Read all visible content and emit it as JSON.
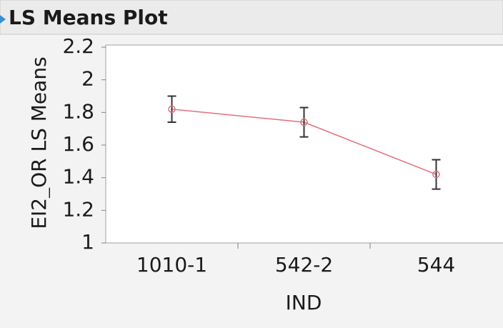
{
  "title": "LS Means Plot",
  "chart_data": {
    "type": "line",
    "y_label": "EI2_OR LS Means",
    "x_label": "IND",
    "categories": [
      "1010-1",
      "542-2",
      "544"
    ],
    "series": [
      {
        "color": "#e0707a",
        "values": [
          1.82,
          1.74,
          1.42
        ],
        "errors": [
          0.08,
          0.09,
          0.09
        ]
      }
    ],
    "error_color": "#333333",
    "ylim": [
      1,
      2.2
    ],
    "yticks": [
      {
        "value": 1,
        "label": "1"
      },
      1.2,
      1.4,
      1.6,
      1.8,
      {
        "value": 2,
        "label": "2"
      },
      2.2
    ]
  }
}
